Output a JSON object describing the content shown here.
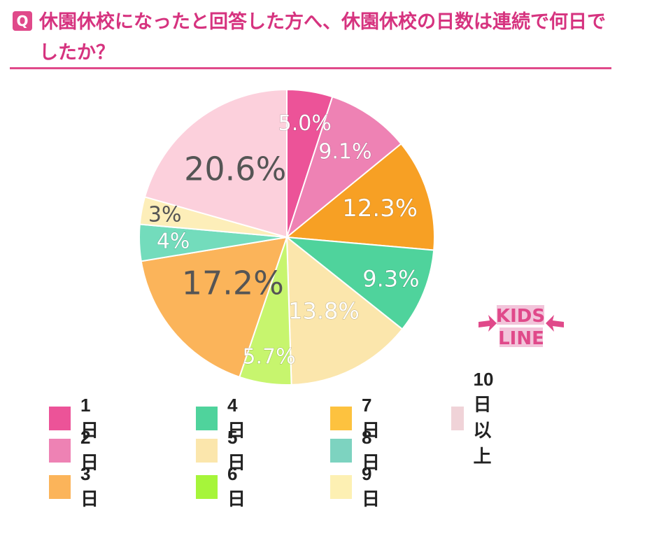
{
  "header": {
    "badge": "Q",
    "title": "休園休校になったと回答した方へ、休園休校の日数は連続で何日でしたか？"
  },
  "logo": {
    "line1": "KIDS",
    "line2": "LINE"
  },
  "chart_data": {
    "type": "pie",
    "title": "休園休校になったと回答した方へ、休園休校の日数は連続で何日でしたか？",
    "slices": [
      {
        "name": "1日",
        "value": 5.0,
        "label": "5.0%",
        "color": "#ec5398",
        "text_color": "#ffffff"
      },
      {
        "name": "2日",
        "value": 9.1,
        "label": "9.1%",
        "color": "#ee82b4",
        "text_color": "#ffffff"
      },
      {
        "name": "7日",
        "value": 12.3,
        "label": "12.3%",
        "color": "#f7a024",
        "text_color": "#ffffff"
      },
      {
        "name": "4日",
        "value": 9.3,
        "label": "9.3%",
        "color": "#4fd39c",
        "text_color": "#ffffff"
      },
      {
        "name": "5日",
        "value": 13.8,
        "label": "13.8%",
        "color": "#fbe6ac",
        "text_color": "#ffffff"
      },
      {
        "name": "6日",
        "value": 5.7,
        "label": "5.7%",
        "color": "#c7f56e",
        "text_color": "#ffffff"
      },
      {
        "name": "3日",
        "value": 17.2,
        "label": "17.2%",
        "color": "#fbb45a",
        "text_color": "#555555"
      },
      {
        "name": "8日",
        "value": 4.0,
        "label": "4%",
        "color": "#73dcbc",
        "text_color": "#ffffff"
      },
      {
        "name": "9日",
        "value": 3.0,
        "label": "3%",
        "color": "#fdeeb9",
        "text_color": "#555555"
      },
      {
        "name": "10日以上",
        "value": 20.6,
        "label": "20.6%",
        "color": "#fcd0dc",
        "text_color": "#555555"
      }
    ],
    "legend": [
      {
        "label": "1日",
        "color": "#ec5398"
      },
      {
        "label": "2日",
        "color": "#ee82b4"
      },
      {
        "label": "3日",
        "color": "#fbb45a"
      },
      {
        "label": "4日",
        "color": "#4fd39c"
      },
      {
        "label": "5日",
        "color": "#fbe6ac"
      },
      {
        "label": "6日",
        "color": "#a6f53a"
      },
      {
        "label": "7日",
        "color": "#fdc23f"
      },
      {
        "label": "8日",
        "color": "#7dd3c0"
      },
      {
        "label": "9日",
        "color": "#fdf0b3"
      },
      {
        "label": "10日以上",
        "color": "#f0d3d8"
      }
    ],
    "legend_placement": "bottom"
  }
}
